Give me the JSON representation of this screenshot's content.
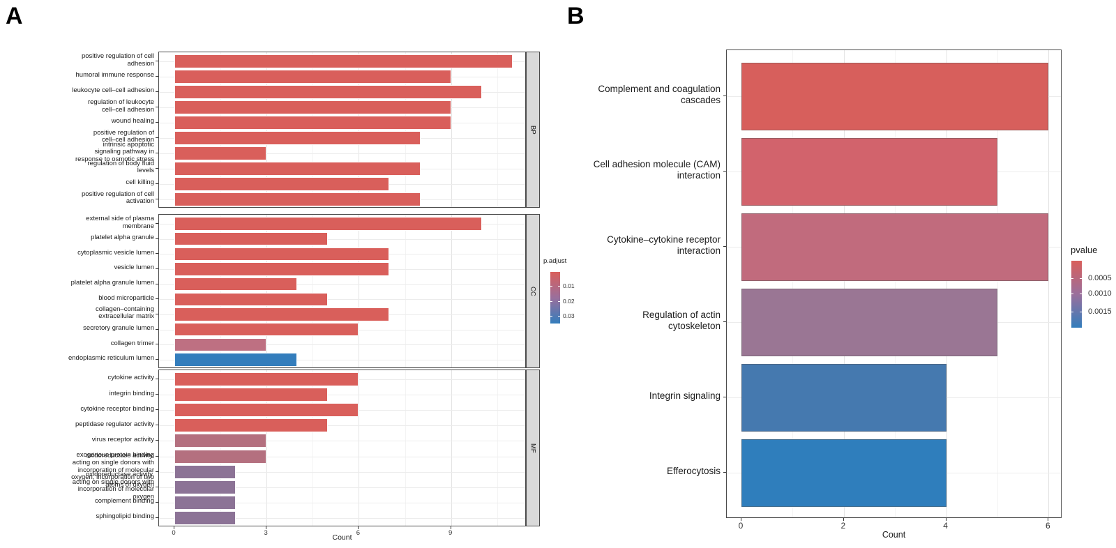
{
  "figure": {
    "panel_a_label": "A",
    "panel_b_label": "B"
  },
  "chart_data": [
    {
      "id": "panel_a_go_enrichment",
      "type": "bar",
      "orientation": "horizontal",
      "xlabel": "Count",
      "x_tick_labels": [
        "0",
        "3",
        "6",
        "9"
      ],
      "x_tick_values": [
        0,
        3,
        6,
        9
      ],
      "xlim": [
        0,
        11.5
      ],
      "grid": true,
      "major_gridline_values": [
        3,
        6,
        9
      ],
      "minor_gridline_values": [
        1.5,
        4.5,
        7.5,
        10.5
      ],
      "legend": {
        "title": "p.adjust",
        "position": "right",
        "tick_labels": [
          "0.01",
          "0.02",
          "0.03"
        ],
        "gradient_colors": [
          "#D95F5B",
          "#9A6F9C",
          "#337DBC"
        ]
      },
      "facets": [
        {
          "name": "BP",
          "rows": [
            {
              "label": "positive regulation of cell adhesion",
              "lines": [
                "positive regulation of cell",
                "adhesion"
              ],
              "value": 11,
              "color": "#D95F5B"
            },
            {
              "label": "humoral immune response",
              "lines": [
                "humoral immune response"
              ],
              "value": 9,
              "color": "#D95F5B"
            },
            {
              "label": "leukocyte cell–cell adhesion",
              "lines": [
                "leukocyte cell–cell adhesion"
              ],
              "value": 10,
              "color": "#D95F5B"
            },
            {
              "label": "regulation of leukocyte cell–cell adhesion",
              "lines": [
                "regulation of leukocyte",
                "cell–cell adhesion"
              ],
              "value": 9,
              "color": "#D95F5B"
            },
            {
              "label": "wound healing",
              "lines": [
                "wound healing"
              ],
              "value": 9,
              "color": "#D95F5B"
            },
            {
              "label": "positive regulation of cell–cell adhesion",
              "lines": [
                "positive regulation of",
                "cell–cell adhesion"
              ],
              "value": 8,
              "color": "#D95F5B"
            },
            {
              "label": "intrinsic apoptotic signaling pathway in response to osmotic stress",
              "lines": [
                "intrinsic apoptotic",
                "signaling pathway in",
                "response to osmotic stress"
              ],
              "value": 3,
              "color": "#D95F5B"
            },
            {
              "label": "regulation of body fluid levels",
              "lines": [
                "regulation of body fluid",
                "levels"
              ],
              "value": 8,
              "color": "#D95F5B"
            },
            {
              "label": "cell killing",
              "lines": [
                "cell killing"
              ],
              "value": 7,
              "color": "#D95F5B"
            },
            {
              "label": "positive regulation of cell activation",
              "lines": [
                "positive regulation of cell",
                "activation"
              ],
              "value": 8,
              "color": "#D95F5B"
            }
          ]
        },
        {
          "name": "CC",
          "rows": [
            {
              "label": "external side of plasma membrane",
              "lines": [
                "external side of plasma",
                "membrane"
              ],
              "value": 10,
              "color": "#D95F5B"
            },
            {
              "label": "platelet alpha granule",
              "lines": [
                "platelet alpha granule"
              ],
              "value": 5,
              "color": "#D95F5B"
            },
            {
              "label": "cytoplasmic vesicle lumen",
              "lines": [
                "cytoplasmic vesicle lumen"
              ],
              "value": 7,
              "color": "#D95F5B"
            },
            {
              "label": "vesicle lumen",
              "lines": [
                "vesicle lumen"
              ],
              "value": 7,
              "color": "#D95F5B"
            },
            {
              "label": "platelet alpha granule lumen",
              "lines": [
                "platelet alpha granule lumen"
              ],
              "value": 4,
              "color": "#D95F5B"
            },
            {
              "label": "blood microparticle",
              "lines": [
                "blood microparticle"
              ],
              "value": 5,
              "color": "#D95F5B"
            },
            {
              "label": "collagen–containing extracellular matrix",
              "lines": [
                "collagen–containing",
                "extracellular matrix"
              ],
              "value": 7,
              "color": "#D95F5B"
            },
            {
              "label": "secretory granule lumen",
              "lines": [
                "secretory granule lumen"
              ],
              "value": 6,
              "color": "#D95F5B"
            },
            {
              "label": "collagen trimer",
              "lines": [
                "collagen trimer"
              ],
              "value": 3,
              "color": "#BE7082"
            },
            {
              "label": "endoplasmic reticulum lumen",
              "lines": [
                "endoplasmic reticulum lumen"
              ],
              "value": 4,
              "color": "#337DBC"
            }
          ]
        },
        {
          "name": "MF",
          "rows": [
            {
              "label": "cytokine activity",
              "lines": [
                "cytokine activity"
              ],
              "value": 6,
              "color": "#D95F5B"
            },
            {
              "label": "integrin binding",
              "lines": [
                "integrin binding"
              ],
              "value": 5,
              "color": "#D95F5B"
            },
            {
              "label": "cytokine receptor binding",
              "lines": [
                "cytokine receptor binding"
              ],
              "value": 6,
              "color": "#D95F5B"
            },
            {
              "label": "peptidase regulator activity",
              "lines": [
                "peptidase regulator activity"
              ],
              "value": 5,
              "color": "#D95F5B"
            },
            {
              "label": "virus receptor activity",
              "lines": [
                "virus receptor activity"
              ],
              "value": 3,
              "color": "#B4707F"
            },
            {
              "label": "exogenous protein binding",
              "lines": [
                "exogenous protein binding"
              ],
              "value": 3,
              "color": "#B4707F"
            },
            {
              "label": "oxidoreductase activity, acting on single donors with incorporation of molecular oxygen, incorporation of two atoms of oxygen",
              "lines": [
                "oxidoreductase activity,",
                "acting on single donors with",
                "incorporation of molecular",
                "oxygen, incorporation of two",
                "atoms of oxygen"
              ],
              "value": 2,
              "color": "#8C7396"
            },
            {
              "label": "oxidoreductase activity, acting on single donors with incorporation of molecular oxygen",
              "lines": [
                "oxidoreductase activity,",
                "acting on single donors with",
                "incorporation of molecular",
                "oxygen"
              ],
              "value": 2,
              "color": "#8C7396"
            },
            {
              "label": "complement binding",
              "lines": [
                "complement binding"
              ],
              "value": 2,
              "color": "#8C7396"
            },
            {
              "label": "sphingolipid binding",
              "lines": [
                "sphingolipid binding"
              ],
              "value": 2,
              "color": "#8C7396"
            }
          ]
        }
      ]
    },
    {
      "id": "panel_b_pathways",
      "type": "bar",
      "orientation": "horizontal",
      "xlabel": "Count",
      "x_tick_labels": [
        "0",
        "2",
        "4",
        "6"
      ],
      "x_tick_values": [
        0,
        2,
        4,
        6
      ],
      "xlim": [
        0,
        6.3
      ],
      "grid": true,
      "major_gridline_values": [
        2,
        4,
        6
      ],
      "minor_gridline_values": [
        1,
        3,
        5
      ],
      "legend": {
        "title": "pvalue",
        "position": "right",
        "tick_labels": [
          "0.0005",
          "0.0010",
          "0.0015"
        ],
        "gradient_colors": [
          "#D95F5B",
          "#9A6F9C",
          "#337DBC"
        ]
      },
      "categories": [
        "Complement and coagulation cascades",
        "Cell adhesion molecule (CAM) interaction",
        "Cytokine–cytokine receptor interaction",
        "Regulation of actin cytoskeleton",
        "Integrin signaling",
        "Efferocytosis"
      ],
      "category_lines": [
        [
          "Complement and coagulation",
          "cascades"
        ],
        [
          "Cell adhesion molecule (CAM)",
          "interaction"
        ],
        [
          "Cytokine–cytokine receptor",
          "interaction"
        ],
        [
          "Regulation of actin",
          "cytoskeleton"
        ],
        [
          "Integrin signaling"
        ],
        [
          "Efferocytosis"
        ]
      ],
      "values": [
        6,
        5,
        6,
        5,
        4,
        4
      ],
      "colors": [
        "#D75F5C",
        "#D2636C",
        "#C16B7D",
        "#9A7694",
        "#4579AF",
        "#2F7EBC"
      ]
    }
  ]
}
